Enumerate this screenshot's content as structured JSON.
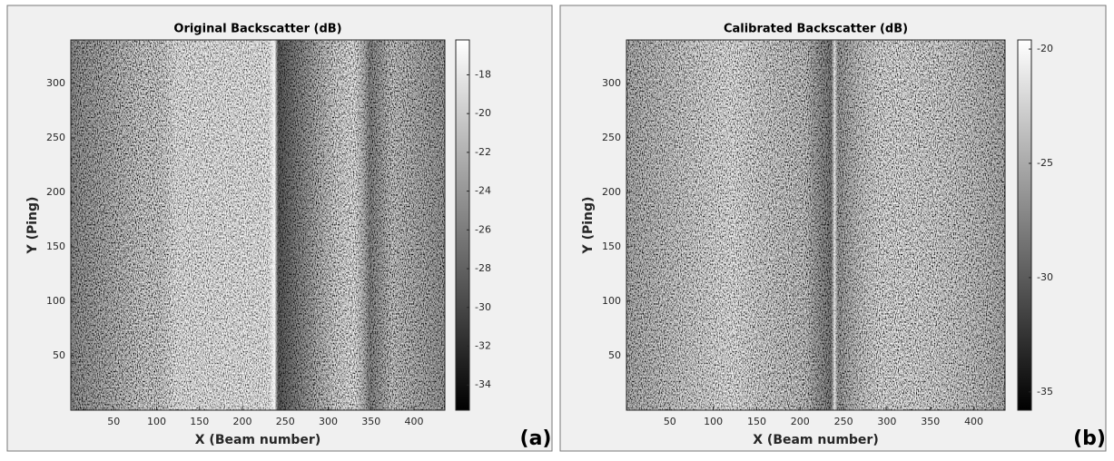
{
  "chart_data": [
    {
      "type": "heatmap",
      "title": "Original Backscatter (dB)",
      "x_label": "X (Beam number)",
      "y_label": "Y (Ping)",
      "panel_label": "(a)",
      "xlim": [
        0,
        436
      ],
      "xticks": [
        50,
        100,
        150,
        200,
        250,
        300,
        350,
        400
      ],
      "ylim": [
        0,
        340
      ],
      "yticks": [
        50,
        100,
        150,
        200,
        250,
        300
      ],
      "colormap": "gray",
      "clim": [
        -35.3,
        -16.2
      ],
      "cticks": [
        -34,
        -32,
        -30,
        -28,
        -26,
        -24,
        -22,
        -20,
        -18
      ]
    },
    {
      "type": "heatmap",
      "title": "Calibrated Backscatter (dB)",
      "x_label": "X (Beam number)",
      "y_label": "Y (Ping)",
      "panel_label": "(b)",
      "xlim": [
        0,
        436
      ],
      "xticks": [
        50,
        100,
        150,
        200,
        250,
        300,
        350,
        400
      ],
      "ylim": [
        0,
        340
      ],
      "yticks": [
        50,
        100,
        150,
        200,
        250,
        300
      ],
      "colormap": "gray",
      "clim": [
        -35.8,
        -19.6
      ],
      "cticks": [
        -35,
        -30,
        -25,
        -20
      ]
    }
  ]
}
